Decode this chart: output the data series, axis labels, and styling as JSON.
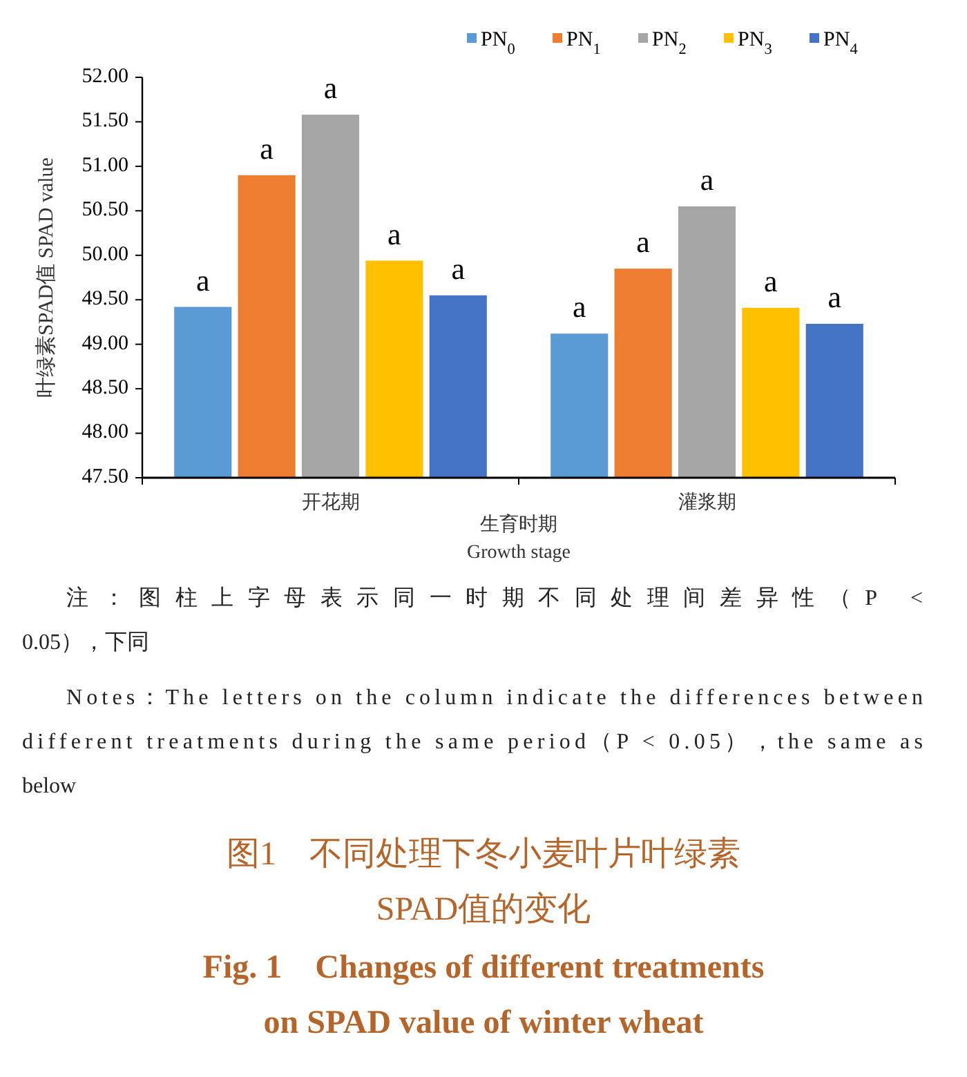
{
  "chart_data": {
    "type": "bar",
    "title": "图1　不同处理下冬小麦叶片叶绿素\nSPAD值的变化",
    "subtitle": "Fig. 1　Changes of different treatments\non SPAD value of winter wheat",
    "xlabel": "生育时期\nGrowth stage",
    "ylabel": "叶绿素SPAD值 SPAD value",
    "categories": [
      "开花期",
      "灌浆期"
    ],
    "series": [
      {
        "name": "PN$_{0}$",
        "color": "#5b9bd5",
        "values": [
          49.42,
          49.12
        ],
        "value_labels": [
          "a",
          "a"
        ]
      },
      {
        "name": "PN$_{1}$",
        "color": "#ed7d31",
        "values": [
          50.9,
          49.85
        ],
        "value_labels": [
          "a",
          "a"
        ]
      },
      {
        "name": "PN$_{2}$",
        "color": "#a5a5a5",
        "values": [
          51.58,
          50.55
        ],
        "value_labels": [
          "a",
          "a"
        ]
      },
      {
        "name": "PN$_{3}$",
        "color": "#ffc000",
        "values": [
          49.94,
          49.41
        ],
        "value_labels": [
          "a",
          "a"
        ]
      },
      {
        "name": "PN$_{4}$",
        "color": "#4472c4",
        "values": [
          49.55,
          49.23
        ],
        "value_labels": [
          "a",
          "a"
        ]
      }
    ],
    "ylim": [
      47.5,
      52
    ],
    "yticks": [
      {
        "value": 47.5,
        "label": "47.50"
      },
      {
        "value": 48,
        "label": "48.00"
      },
      {
        "value": 48.5,
        "label": "48.50"
      },
      {
        "value": 49,
        "label": "49.00"
      },
      {
        "value": 49.5,
        "label": "49.50"
      },
      {
        "value": 50,
        "label": "50.00"
      },
      {
        "value": 50.5,
        "label": "50.50"
      },
      {
        "value": 51,
        "label": "51.00"
      },
      {
        "value": 51.5,
        "label": "51.50"
      },
      {
        "value": 52,
        "label": "52.00"
      }
    ],
    "grid": false,
    "legend": "top right",
    "annotations": [
      "注：图柱上字母表示同一时期不同处理间差异性（P <\n0.05），下同",
      "Notes：The letters on the column indicate the differences between\ndifferent treatments during the same period（P < 0.05），the same as\nbelow"
    ]
  }
}
